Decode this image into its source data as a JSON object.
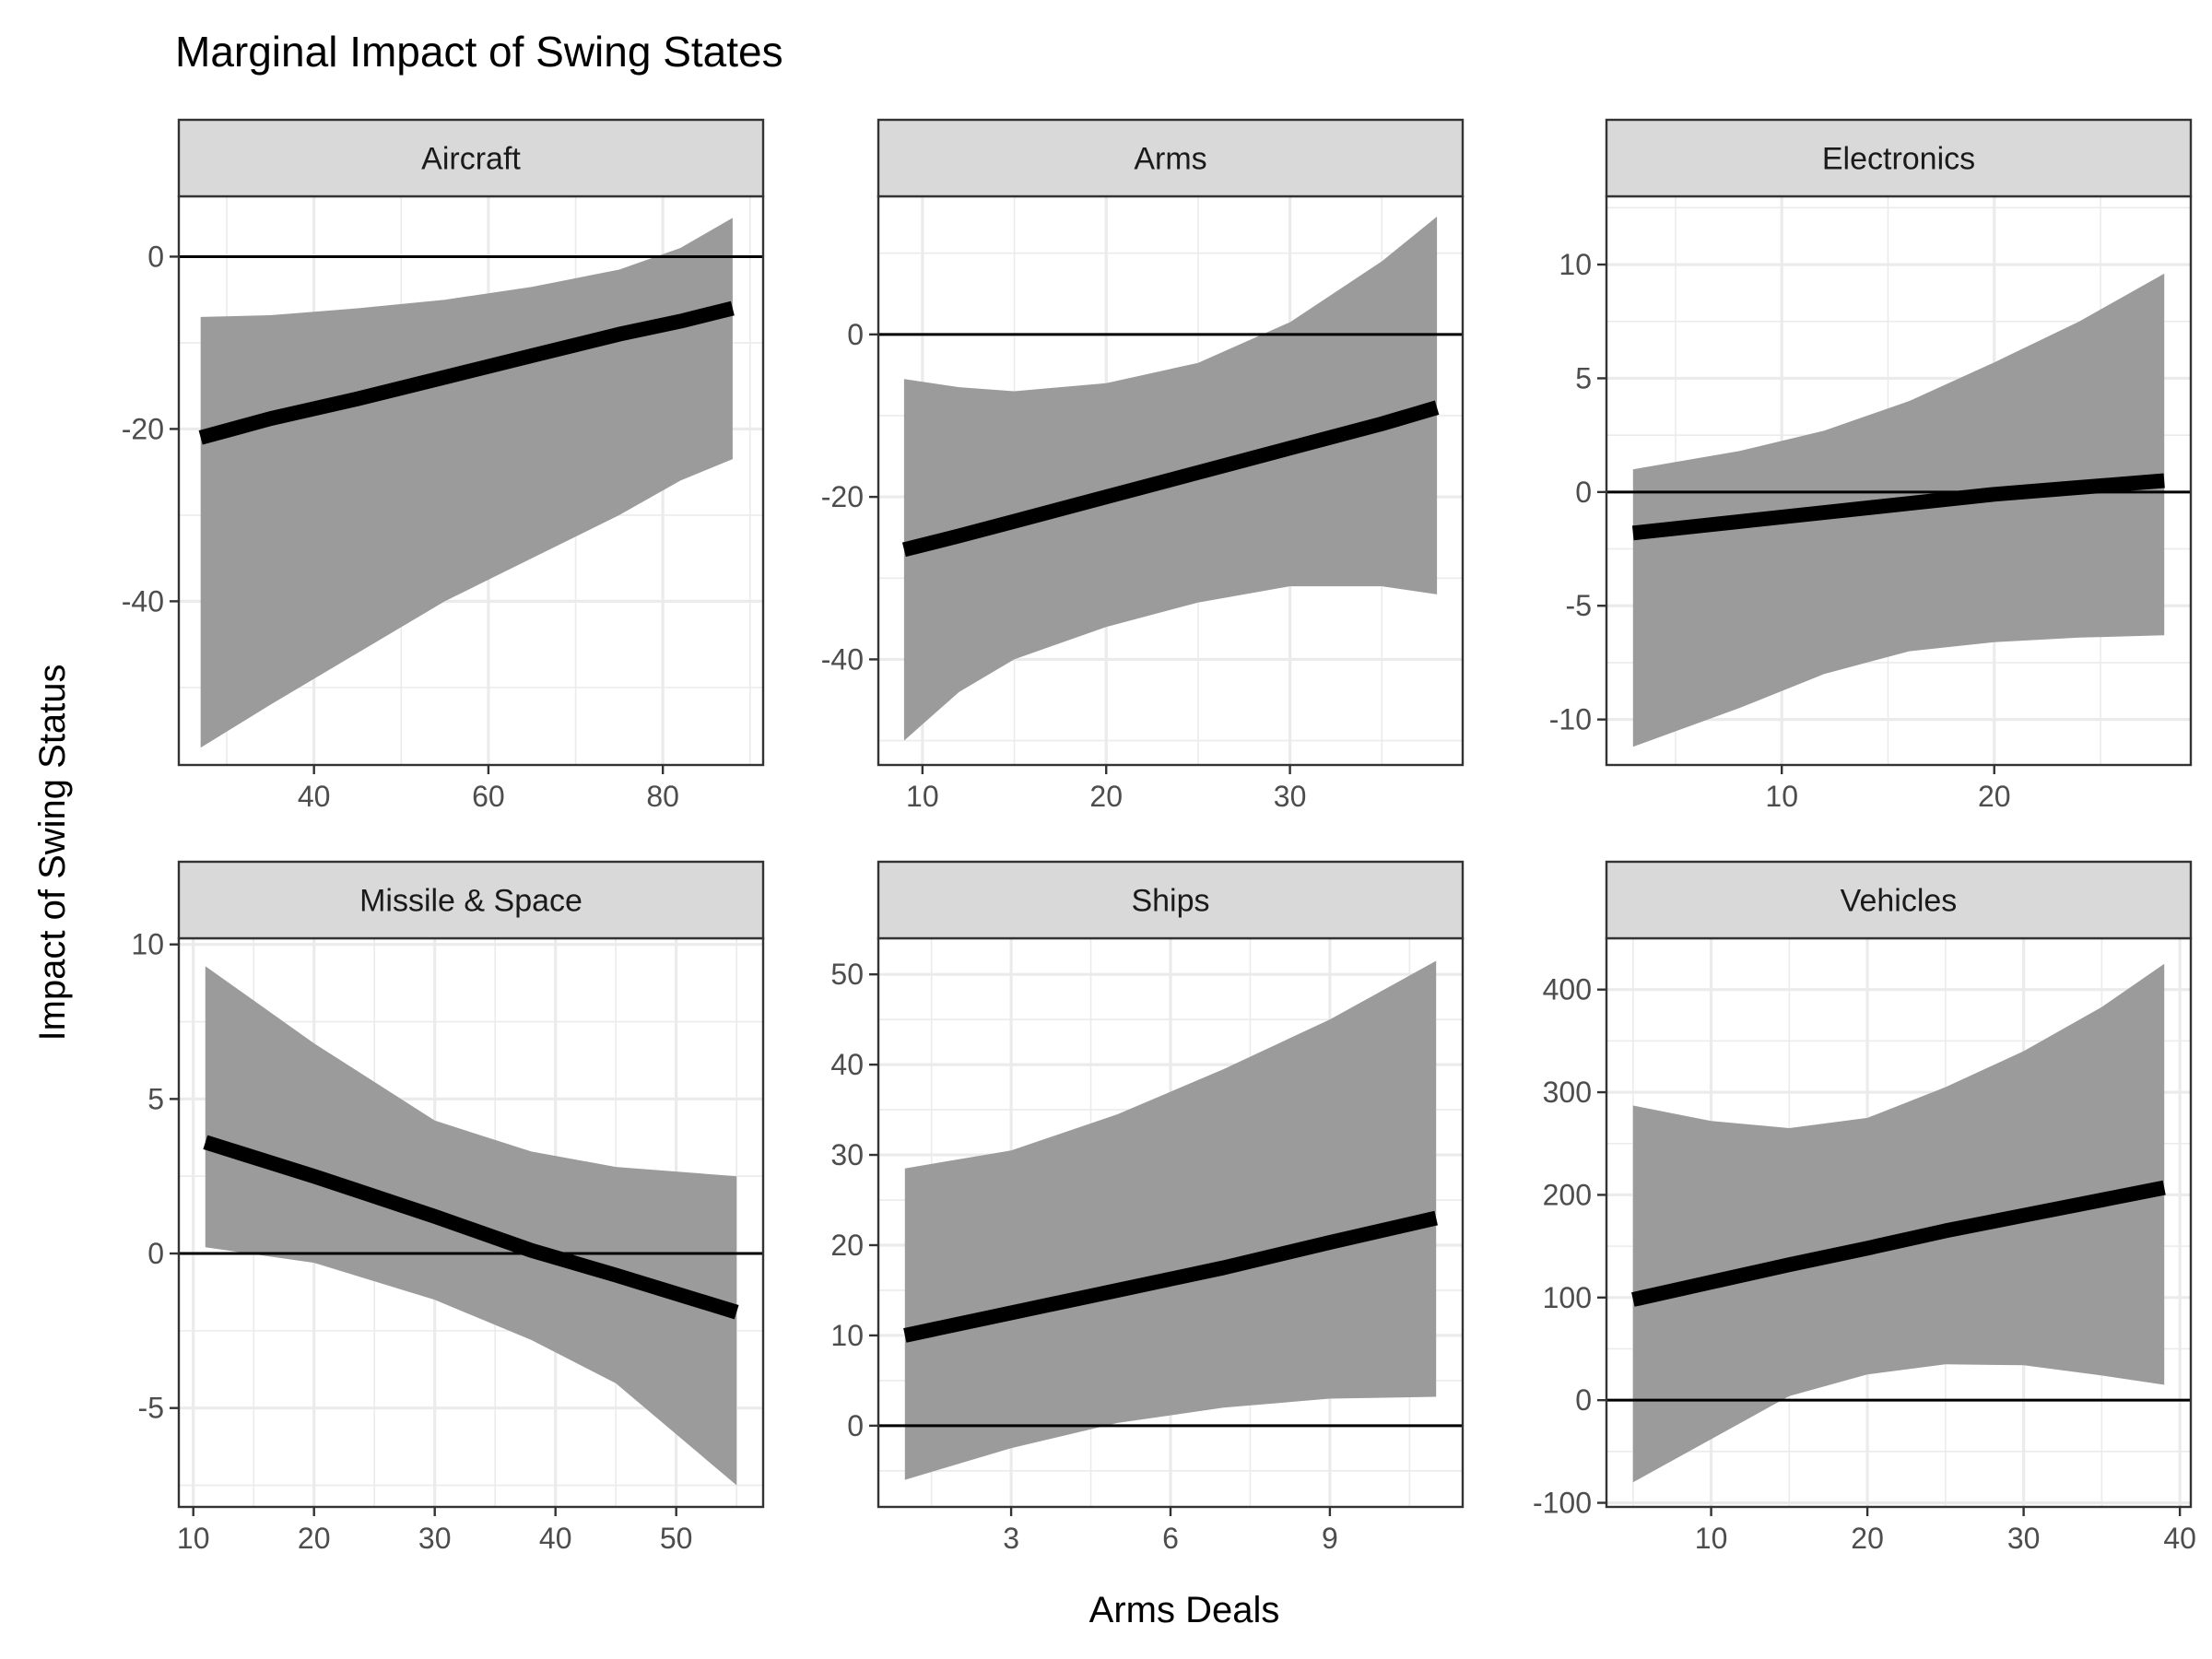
{
  "chart_data": {
    "type": "line",
    "title": "Marginal Impact of Swing States",
    "xlabel": "Arms Deals",
    "ylabel": "Impact of Swing Status",
    "grid": true,
    "legend": "none",
    "colors": {
      "line": "#000000",
      "ribbon": "#999999",
      "strip": "#d9d9d9",
      "grid": "#ebebeb",
      "panel_border": "#333333"
    },
    "panels": [
      {
        "name": "Aircraft",
        "xlim": [
          24.5,
          91.5
        ],
        "ylim": [
          -59,
          7
        ],
        "xticks": [
          40,
          60,
          80
        ],
        "yticks": [
          0,
          -20,
          -40
        ],
        "x": [
          27,
          35,
          45,
          55,
          65,
          75,
          82,
          88
        ],
        "y": [
          -21,
          -18.8,
          -16.5,
          -14,
          -11.5,
          -9,
          -7.5,
          -6
        ],
        "lower": [
          -57,
          -52,
          -46,
          -40,
          -35,
          -30,
          -26,
          -23.5
        ],
        "upper": [
          -7,
          -6.8,
          -6,
          -5,
          -3.5,
          -1.5,
          1,
          4.5
        ]
      },
      {
        "name": "Arms",
        "xlim": [
          7.6,
          39.4
        ],
        "ylim": [
          -53,
          17
        ],
        "xticks": [
          10,
          20,
          30
        ],
        "yticks": [
          0,
          -20,
          -40
        ],
        "x": [
          9,
          12,
          15,
          20,
          25,
          30,
          35,
          38
        ],
        "y": [
          -26.5,
          -24.8,
          -23,
          -20,
          -17,
          -14,
          -11,
          -9
        ],
        "lower": [
          -50,
          -44,
          -40,
          -36,
          -33,
          -31,
          -31,
          -32
        ],
        "upper": [
          -5.5,
          -6.5,
          -7,
          -6,
          -3.5,
          1.5,
          9,
          14.5
        ]
      },
      {
        "name": "Electronics",
        "xlim": [
          1.75,
          29.25
        ],
        "ylim": [
          -12,
          13
        ],
        "xticks": [
          10,
          20
        ],
        "yticks": [
          10,
          5,
          0,
          -5,
          -10
        ],
        "x": [
          3,
          8,
          12,
          16,
          20,
          24,
          28
        ],
        "y": [
          -1.8,
          -1.3,
          -0.9,
          -0.5,
          -0.1,
          0.2,
          0.5
        ],
        "lower": [
          -11.2,
          -9.5,
          -8,
          -7,
          -6.6,
          -6.4,
          -6.3
        ],
        "upper": [
          1,
          1.8,
          2.7,
          4,
          5.7,
          7.5,
          9.6
        ]
      },
      {
        "name": "Missile & Space",
        "xlim": [
          8.8,
          57.2
        ],
        "ylim": [
          -8.2,
          10.2
        ],
        "xticks": [
          10,
          20,
          30,
          40,
          50
        ],
        "yticks": [
          10,
          5,
          0,
          -5
        ],
        "x": [
          11,
          20,
          30,
          38,
          45,
          55
        ],
        "y": [
          3.6,
          2.5,
          1.2,
          0.1,
          -0.7,
          -1.9
        ],
        "lower": [
          0.2,
          -0.3,
          -1.5,
          -2.8,
          -4.2,
          -7.5
        ],
        "upper": [
          9.3,
          6.8,
          4.3,
          3.3,
          2.8,
          2.5
        ]
      },
      {
        "name": "Ships",
        "xlim": [
          0.5,
          11.5
        ],
        "ylim": [
          -9,
          54
        ],
        "xticks": [
          3,
          6,
          9
        ],
        "yticks": [
          50,
          40,
          30,
          20,
          10,
          0
        ],
        "x": [
          1,
          3,
          5,
          7,
          9,
          11
        ],
        "y": [
          10,
          12.5,
          15,
          17.5,
          20.3,
          23
        ],
        "lower": [
          -6,
          -2.5,
          0.3,
          2,
          3,
          3.2
        ],
        "upper": [
          28.5,
          30.5,
          34.5,
          39.5,
          45,
          51.5
        ]
      },
      {
        "name": "Vehicles",
        "xlim": [
          3.3,
          40.7
        ],
        "ylim": [
          -104,
          450
        ],
        "xticks": [
          10,
          20,
          30,
          40
        ],
        "yticks": [
          400,
          300,
          200,
          100,
          0,
          -100
        ],
        "x": [
          5,
          10,
          15,
          20,
          25,
          30,
          35,
          39
        ],
        "y": [
          98,
          115,
          132,
          148,
          165,
          180,
          195,
          207
        ],
        "lower": [
          -80,
          -38,
          4,
          25,
          35,
          34,
          24,
          15
        ],
        "upper": [
          287,
          272,
          265,
          275,
          305,
          340,
          383,
          425
        ]
      }
    ]
  }
}
